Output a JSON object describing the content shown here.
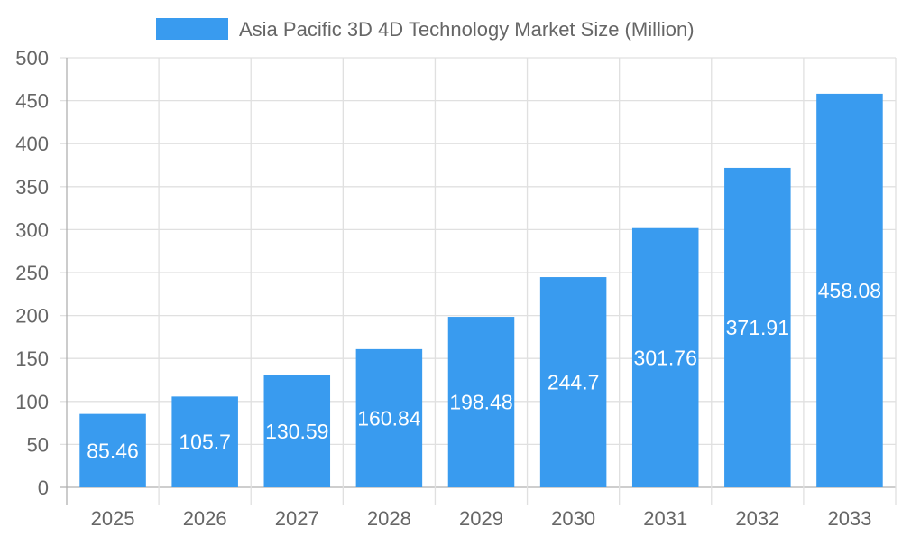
{
  "chart_data": {
    "type": "bar",
    "title": "",
    "xlabel": "",
    "ylabel": "",
    "categories": [
      "2025",
      "2026",
      "2027",
      "2028",
      "2029",
      "2030",
      "2031",
      "2032",
      "2033"
    ],
    "series": [
      {
        "name": "Asia Pacific 3D 4D Technology Market Size (Million)",
        "values": [
          85.46,
          105.7,
          130.59,
          160.84,
          198.48,
          244.7,
          301.76,
          371.91,
          458.08
        ],
        "color": "#399bef"
      }
    ],
    "data_labels": [
      "85.46",
      "105.7",
      "130.59",
      "160.84",
      "198.48",
      "244.7",
      "301.76",
      "371.91",
      "458.08"
    ],
    "ylim": [
      0,
      500
    ],
    "yticks": [
      "0",
      "50",
      "100",
      "150",
      "200",
      "250",
      "300",
      "350",
      "400",
      "450",
      "500"
    ],
    "grid": true,
    "legend_position": "top"
  }
}
